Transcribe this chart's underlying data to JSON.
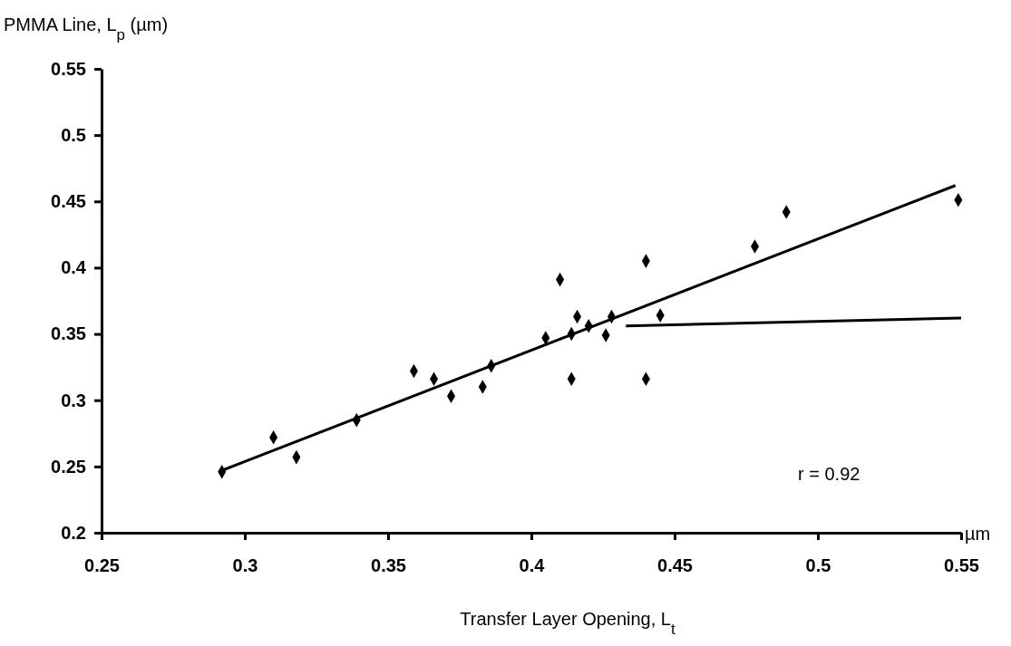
{
  "chart_data": {
    "type": "scatter",
    "xlabel": "Transfer Layer Opening, L$_{t}$",
    "ylabel": "PMMA Line, L$_{p}$ (µm)",
    "xlim": [
      0.25,
      0.55
    ],
    "ylim": [
      0.2,
      0.55
    ],
    "xticks": [
      0.25,
      0.3,
      0.35,
      0.4,
      0.45,
      0.5,
      0.55
    ],
    "yticks": [
      0.2,
      0.25,
      0.3,
      0.35,
      0.4,
      0.45,
      0.5,
      0.55
    ],
    "marker": "diamond",
    "grid": false,
    "annotations": [
      "r = 0.92",
      "µm"
    ],
    "series": [
      {
        "color": "#000000",
        "x": [
          0.292,
          0.31,
          0.318,
          0.339,
          0.359,
          0.366,
          0.372,
          0.383,
          0.386,
          0.405,
          0.41,
          0.414,
          0.414,
          0.416,
          0.42,
          0.426,
          0.428,
          0.44,
          0.44,
          0.445,
          0.478,
          0.489,
          0.549
        ],
        "values": [
          0.246,
          0.272,
          0.257,
          0.285,
          0.322,
          0.316,
          0.303,
          0.31,
          0.326,
          0.347,
          0.391,
          0.316,
          0.35,
          0.363,
          0.356,
          0.349,
          0.363,
          0.405,
          0.316,
          0.364,
          0.416,
          0.442,
          0.451
        ]
      },
      {
        "type": "line",
        "marker": "none",
        "color": "#000000",
        "x": [
          0.292,
          0.548
        ],
        "values": [
          0.247,
          0.462
        ]
      },
      {
        "type": "line",
        "marker": "none",
        "color": "#000000",
        "x": [
          0.433,
          0.55
        ],
        "values": [
          0.356,
          0.362
        ]
      }
    ]
  }
}
